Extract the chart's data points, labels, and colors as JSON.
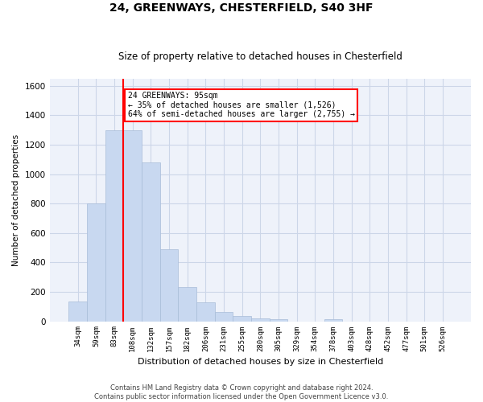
{
  "title1": "24, GREENWAYS, CHESTERFIELD, S40 3HF",
  "title2": "Size of property relative to detached houses in Chesterfield",
  "xlabel": "Distribution of detached houses by size in Chesterfield",
  "ylabel": "Number of detached properties",
  "categories": [
    "34sqm",
    "59sqm",
    "83sqm",
    "108sqm",
    "132sqm",
    "157sqm",
    "182sqm",
    "206sqm",
    "231sqm",
    "255sqm",
    "280sqm",
    "305sqm",
    "329sqm",
    "354sqm",
    "378sqm",
    "403sqm",
    "428sqm",
    "452sqm",
    "477sqm",
    "501sqm",
    "526sqm"
  ],
  "values": [
    135,
    800,
    1300,
    1300,
    1080,
    490,
    230,
    130,
    65,
    35,
    22,
    14,
    0,
    0,
    14,
    0,
    0,
    0,
    0,
    0,
    0
  ],
  "bar_color": "#c8d8f0",
  "bar_edge_color": "#a8bcd8",
  "vline_color": "red",
  "vline_x_index": 2.48,
  "annotation_text": "24 GREENWAYS: 95sqm\n← 35% of detached houses are smaller (1,526)\n64% of semi-detached houses are larger (2,755) →",
  "annotation_box_color": "white",
  "annotation_box_edge": "red",
  "ylim": [
    0,
    1650
  ],
  "yticks": [
    0,
    200,
    400,
    600,
    800,
    1000,
    1200,
    1400,
    1600
  ],
  "footer1": "Contains HM Land Registry data © Crown copyright and database right 2024.",
  "footer2": "Contains public sector information licensed under the Open Government Licence v3.0.",
  "grid_color": "#ccd6e8",
  "background_color": "#eef2fa"
}
